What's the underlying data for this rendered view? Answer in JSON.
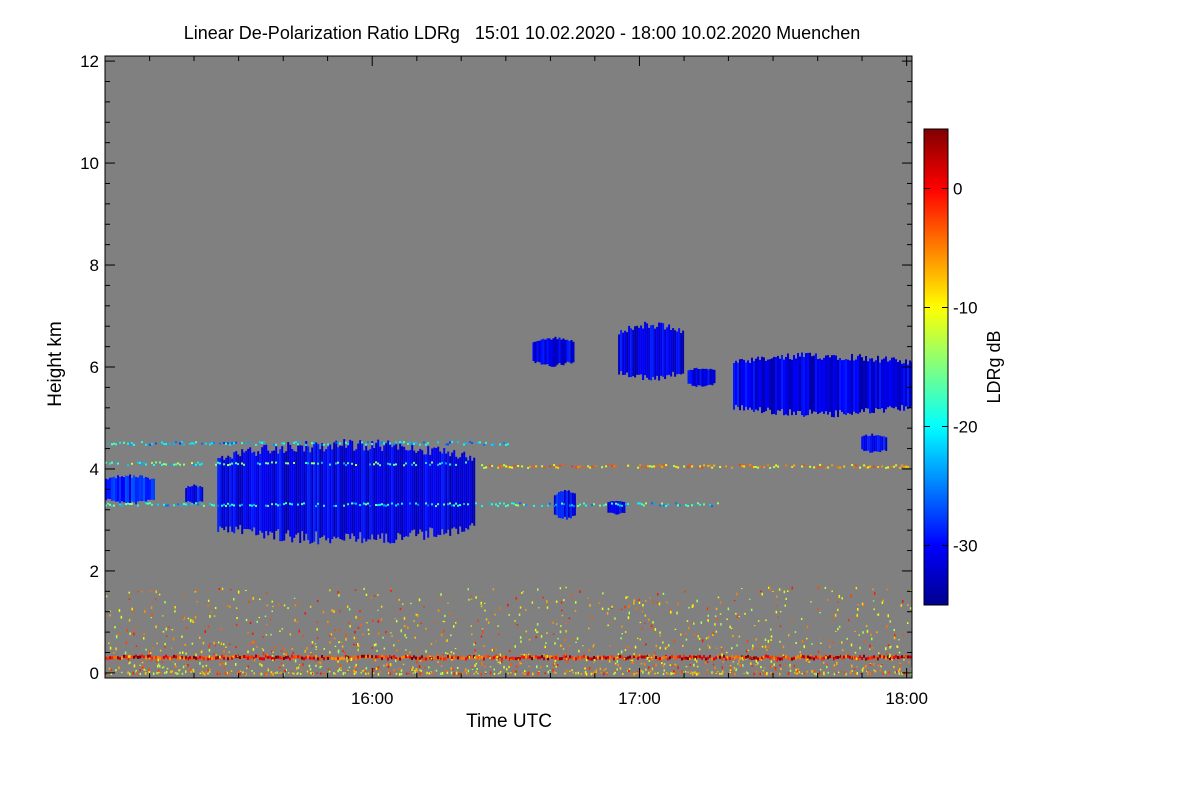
{
  "chart_data": {
    "type": "heatmap",
    "title": "Linear De-Polarization Ratio LDRg   15:01 10.02.2020 - 18:00 10.02.2020 Muenchen",
    "xlabel": "Time UTC",
    "ylabel": "Height km",
    "x_start": "15:01",
    "x_end": "18:00",
    "xlim_hours": [
      15.0,
      18.02
    ],
    "ylim_km": [
      -0.1,
      12.1
    ],
    "x_ticks": [
      {
        "hour": 16.0,
        "label": "16:00"
      },
      {
        "hour": 17.0,
        "label": "17:00"
      },
      {
        "hour": 18.0,
        "label": "18:00"
      }
    ],
    "x_minor_ticks": [
      15.167,
      15.333,
      15.5,
      15.667,
      15.833,
      16.167,
      16.333,
      16.5,
      16.667,
      16.833,
      17.167,
      17.333,
      17.5,
      17.667,
      17.833
    ],
    "y_ticks": [
      {
        "value": 0,
        "label": "0"
      },
      {
        "value": 2,
        "label": "2"
      },
      {
        "value": 4,
        "label": "4"
      },
      {
        "value": 6,
        "label": "6"
      },
      {
        "value": 8,
        "label": "8"
      },
      {
        "value": 10,
        "label": "10"
      },
      {
        "value": 12,
        "label": "12"
      }
    ],
    "y_minor_ticks": [
      0.4,
      0.8,
      1.2,
      1.6,
      2.4,
      2.8,
      3.2,
      3.6,
      4.4,
      4.8,
      5.2,
      5.6,
      6.4,
      6.8,
      7.2,
      7.6,
      8.4,
      8.8,
      9.2,
      9.6,
      10.4,
      10.8,
      11.2,
      11.6
    ],
    "colorbar": {
      "label": "LDRg dB",
      "range_db": [
        -35,
        5
      ],
      "colormap": "jet",
      "ticks": [
        {
          "value": 0,
          "label": "0"
        },
        {
          "value": -10,
          "label": "-10"
        },
        {
          "value": -20,
          "label": "-20"
        },
        {
          "value": -30,
          "label": "-30"
        }
      ]
    },
    "background_color": "#808080",
    "regions": [
      {
        "name": "main-cloud-layer",
        "t_start": 15.42,
        "t_end": 16.38,
        "h_bottom": 2.5,
        "h_top": 4.6,
        "ldr_db": -31
      },
      {
        "name": "cloud-edge-west",
        "t_start": 15.0,
        "t_end": 15.18,
        "h_bottom": 3.3,
        "h_top": 3.9,
        "ldr_db": -29
      },
      {
        "name": "cloud-patch-1540",
        "t_start": 15.3,
        "t_end": 15.36,
        "h_bottom": 3.3,
        "h_top": 3.7,
        "ldr_db": -30
      },
      {
        "name": "cloud-patch-1642",
        "t_start": 16.68,
        "t_end": 16.76,
        "h_bottom": 3.0,
        "h_top": 3.6,
        "ldr_db": -30
      },
      {
        "name": "cloud-patch-1655",
        "t_start": 16.88,
        "t_end": 16.94,
        "h_bottom": 3.1,
        "h_top": 3.4,
        "ldr_db": -31
      },
      {
        "name": "upper-cloud-1640",
        "t_start": 16.6,
        "t_end": 16.75,
        "h_bottom": 6.0,
        "h_top": 6.6,
        "ldr_db": -31
      },
      {
        "name": "upper-cloud-1705",
        "t_start": 16.92,
        "t_end": 17.16,
        "h_bottom": 5.7,
        "h_top": 6.9,
        "ldr_db": -31
      },
      {
        "name": "upper-cloud-1725",
        "t_start": 17.18,
        "t_end": 17.28,
        "h_bottom": 5.6,
        "h_top": 6.0,
        "ldr_db": -31
      },
      {
        "name": "upper-cloud-1750",
        "t_start": 17.35,
        "t_end": 18.02,
        "h_bottom": 5.0,
        "h_top": 6.3,
        "ldr_db": -31
      },
      {
        "name": "upper-cloud-tail",
        "t_start": 17.83,
        "t_end": 17.92,
        "h_bottom": 4.3,
        "h_top": 4.7,
        "ldr_db": -30
      }
    ],
    "bands": [
      {
        "name": "band-4.5km",
        "t_start": 15.0,
        "t_end": 16.52,
        "h": 4.5,
        "ldr_db": -22
      },
      {
        "name": "band-4.1km",
        "t_start": 15.0,
        "t_end": 16.38,
        "h": 4.1,
        "ldr_db": -18
      },
      {
        "name": "band-3.3km",
        "t_start": 15.0,
        "t_end": 17.3,
        "h": 3.3,
        "ldr_db": -20
      },
      {
        "name": "band-4.0km-east",
        "t_start": 16.4,
        "t_end": 18.02,
        "h": 4.05,
        "ldr_db": -8
      },
      {
        "name": "surface-band",
        "t_start": 15.0,
        "t_end": 18.02,
        "h": 0.3,
        "ldr_db": 0
      }
    ]
  }
}
